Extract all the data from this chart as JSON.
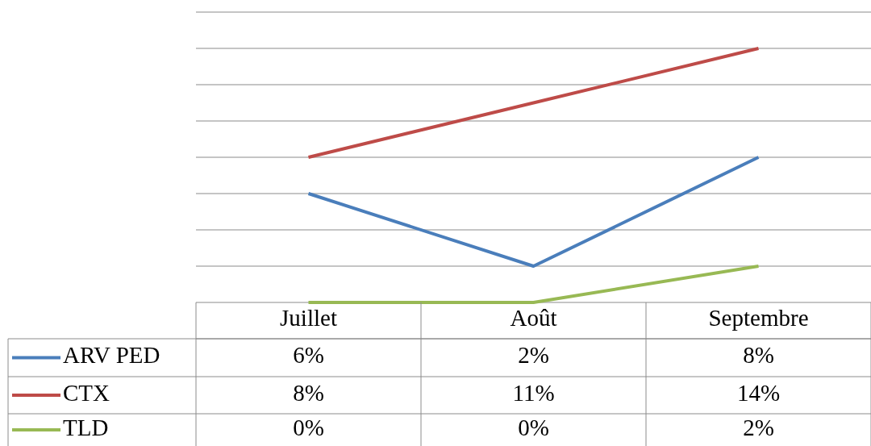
{
  "chart_data": {
    "type": "line",
    "categories": [
      "Juillet",
      "Août",
      "Septembre"
    ],
    "series": [
      {
        "name": "ARV PED",
        "color": "#4a7ebb",
        "values": [
          6,
          2,
          8
        ],
        "value_labels": [
          "6%",
          "2%",
          "8%"
        ]
      },
      {
        "name": "CTX",
        "color": "#be4b48",
        "values": [
          8,
          11,
          14
        ],
        "value_labels": [
          "8%",
          "11%",
          "14%"
        ]
      },
      {
        "name": "TLD",
        "color": "#98b954",
        "values": [
          0,
          0,
          2
        ],
        "value_labels": [
          "0%",
          "0%",
          "2%"
        ]
      }
    ],
    "ylim": [
      0,
      16
    ],
    "yticks": [
      {
        "value": 0,
        "label": null
      },
      {
        "value": 2,
        "label": null
      },
      {
        "value": 4,
        "label": null
      },
      {
        "value": 6,
        "label": null
      },
      {
        "value": 8,
        "label": null
      },
      {
        "value": 10,
        "label": null
      },
      {
        "value": 12,
        "label": null
      },
      {
        "value": 14,
        "label": null
      },
      {
        "value": 16,
        "label": null
      }
    ],
    "grid": "y",
    "legend": "bottom",
    "tick_labels": "x",
    "marker": "none",
    "line_style": "solid"
  }
}
